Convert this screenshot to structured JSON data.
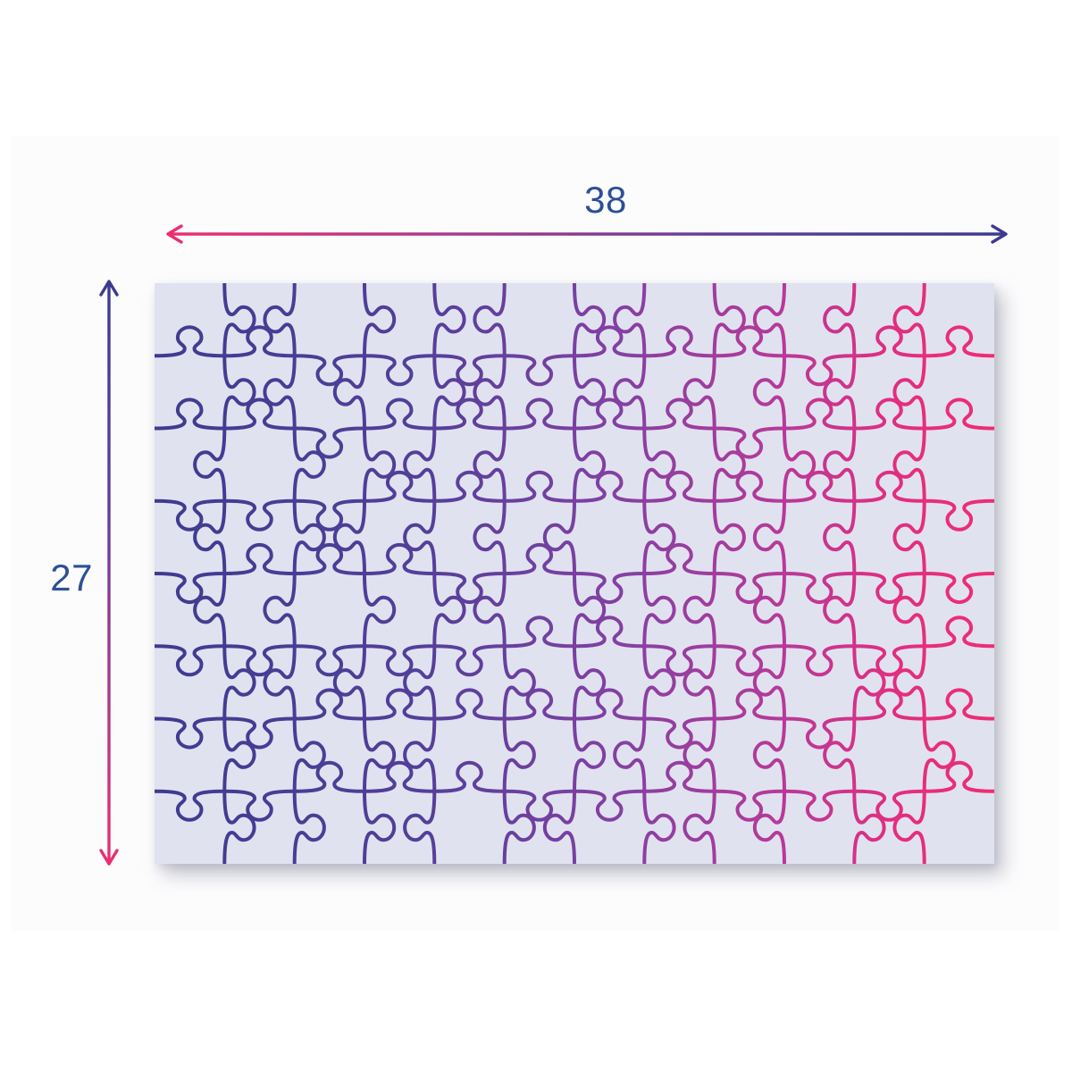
{
  "figure": {
    "type": "puzzle-dimensions-diagram",
    "width_label": "38",
    "height_label": "27",
    "label_color": "#2b5094",
    "page_background": "#ffffff",
    "card_background": "#fcfcfd",
    "arrow_gradient": {
      "pink_end": "#ed2e6f",
      "magenta_mid": "#a93a8a",
      "violet_mid": "#5b3f97",
      "navy_end": "#3c3a8e"
    },
    "puzzle": {
      "columns": 12,
      "rows": 8,
      "background_color": "#e1e2f0",
      "line_width": 4,
      "line_gradient": [
        {
          "at": 0,
          "color": "#3e3b90"
        },
        {
          "at": 0.32,
          "color": "#533f9a"
        },
        {
          "at": 0.55,
          "color": "#8340a3"
        },
        {
          "at": 0.74,
          "color": "#b53a99"
        },
        {
          "at": 0.88,
          "color": "#e22e80"
        },
        {
          "at": 1,
          "color": "#ee2d74"
        }
      ]
    }
  }
}
